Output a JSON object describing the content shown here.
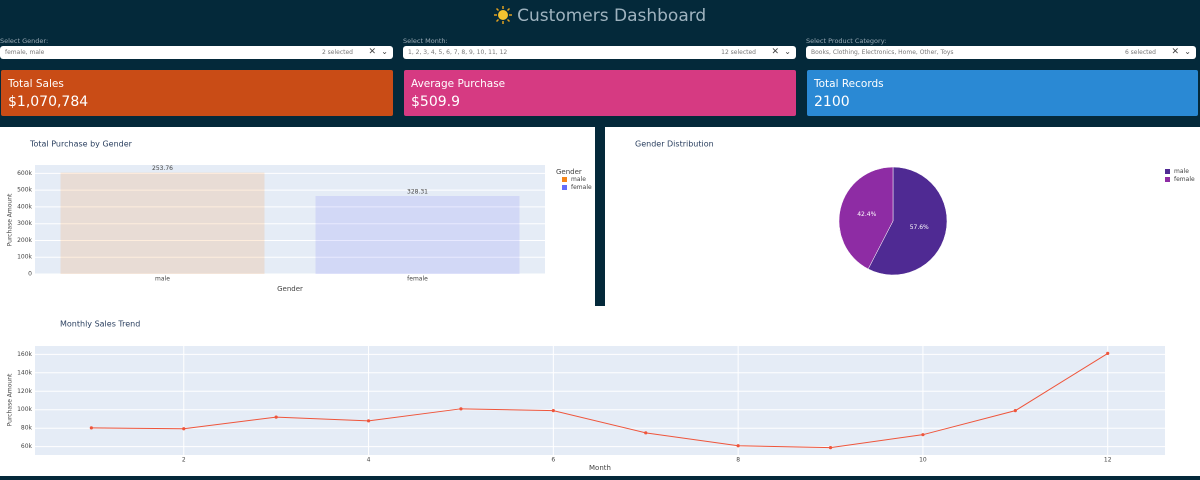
{
  "header": {
    "title": "Customers Dashboard"
  },
  "filters": [
    {
      "label": "Select Gender:",
      "value": "female, male",
      "count": "2 selected"
    },
    {
      "label": "Select Month:",
      "value": "1, 2, 3, 4, 5, 6, 7, 8, 9, 10, 11, 12",
      "count": "12 selected"
    },
    {
      "label": "Select Product Category:",
      "value": "Books, Clothing, Electronics, Home, Other, Toys",
      "count": "6 selected"
    }
  ],
  "kpis": [
    {
      "label": "Total Sales",
      "value": "$1,070,784",
      "color": "#c94c16"
    },
    {
      "label": "Average Purchase",
      "value": "$509.9",
      "color": "#d63a82"
    },
    {
      "label": "Total Records",
      "value": "2100",
      "color": "#2a89d4"
    }
  ],
  "chart_data": [
    {
      "type": "bar",
      "title": "Total Purchase by Gender",
      "x_label": "Gender",
      "y_label": "Purchase Amount",
      "legend_title": "Gender",
      "categories": [
        "male",
        "female"
      ],
      "series": [
        {
          "name": "male",
          "color": "#f58518",
          "values": [
            605000,
            null
          ]
        },
        {
          "name": "female",
          "color": "#636efa",
          "values": [
            null,
            465000
          ]
        }
      ],
      "annotations": [
        "253.76",
        "328.31"
      ],
      "ylim": [
        0,
        650000
      ],
      "yticks": [
        0,
        {
          "value": 100000,
          "label": "100k"
        },
        {
          "value": 200000,
          "label": "200k"
        },
        {
          "value": 300000,
          "label": "300k"
        },
        {
          "value": 400000,
          "label": "400k"
        },
        {
          "value": 500000,
          "label": "500k"
        },
        {
          "value": 600000,
          "label": "600k"
        }
      ],
      "grid": true,
      "legend": "top-right"
    },
    {
      "type": "pie",
      "title": "Gender Distribution",
      "categories": [
        "male",
        "female"
      ],
      "values": [
        57.6,
        42.4
      ],
      "value_labels": [
        "57.6%",
        "42.4%"
      ],
      "colors": [
        "#4f2a93",
        "#8e2ca4"
      ],
      "legend": "top-right"
    },
    {
      "type": "line",
      "title": "Monthly Sales Trend",
      "x_label": "Month",
      "y_label": "Purchase Amount",
      "x": [
        1,
        2,
        3,
        4,
        5,
        6,
        7,
        8,
        9,
        10,
        11,
        12
      ],
      "series": [
        {
          "name": "Purchase Amount",
          "color": "#ef553b",
          "values": [
            80400,
            79400,
            92000,
            88000,
            101000,
            99000,
            75000,
            61000,
            59000,
            73000,
            99000,
            161000
          ]
        }
      ],
      "xlim": [
        0.39,
        12.62
      ],
      "xticks": [
        2,
        4,
        6,
        8,
        10,
        12
      ],
      "ylim": [
        51000,
        169000
      ],
      "yticks": [
        {
          "value": 60000,
          "label": "60k"
        },
        {
          "value": 80000,
          "label": "80k"
        },
        {
          "value": 100000,
          "label": "100k"
        },
        {
          "value": 120000,
          "label": "120k"
        },
        {
          "value": 140000,
          "label": "140k"
        },
        {
          "value": 160000,
          "label": "160k"
        }
      ],
      "grid": true
    }
  ]
}
